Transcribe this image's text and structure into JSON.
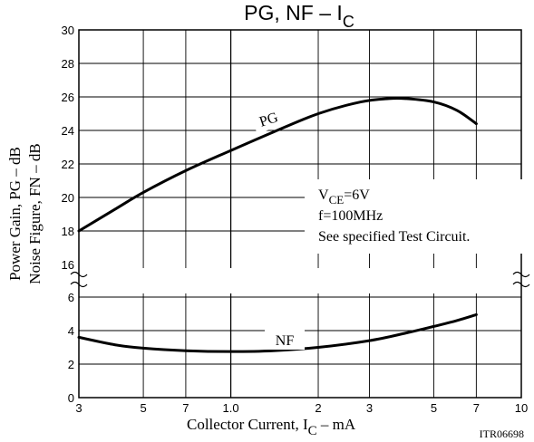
{
  "chart_data": {
    "type": "line",
    "title": {
      "main": "PG,  NF  –  I",
      "sub": "C"
    },
    "xlabel": {
      "main": "Collector Current, I",
      "sub": "C",
      "suffix": "  –  mA"
    },
    "ylabel": {
      "line1": "Power Gain, PG  –  dB",
      "line2": "Noise Figure, FN  –  dB"
    },
    "x_scale": "log",
    "xlim": [
      3,
      100
    ],
    "x_ticks": [
      {
        "value": 3,
        "label": "3"
      },
      {
        "value": 5,
        "label": "5"
      },
      {
        "value": 7,
        "label": "7"
      },
      {
        "value": 10,
        "label": "1.0"
      },
      {
        "value": 20,
        "label": "2"
      },
      {
        "value": 30,
        "label": "3"
      },
      {
        "value": 50,
        "label": "5"
      },
      {
        "value": 70,
        "label": "7"
      },
      {
        "value": 100,
        "label": "10"
      }
    ],
    "y_upper_ticks": [
      "16",
      "18",
      "20",
      "22",
      "24",
      "26",
      "28",
      "30"
    ],
    "y_lower_ticks": [
      "0",
      "2",
      "4",
      "6"
    ],
    "ylim_upper": [
      16,
      30
    ],
    "ylim_lower": [
      0,
      6
    ],
    "axis_break": "between 6 and 16",
    "grid": true,
    "series": [
      {
        "name": "PG",
        "x": [
          3,
          4,
          5,
          7,
          10,
          14,
          20,
          28,
          35,
          40,
          50,
          60,
          70
        ],
        "y": [
          18.0,
          19.3,
          20.3,
          21.6,
          22.8,
          23.9,
          25.0,
          25.7,
          25.9,
          25.9,
          25.7,
          25.2,
          24.4
        ]
      },
      {
        "name": "NF",
        "x": [
          3,
          4,
          5,
          7,
          10,
          14,
          20,
          30,
          40,
          50,
          60,
          70
        ],
        "y": [
          3.6,
          3.15,
          2.95,
          2.8,
          2.75,
          2.8,
          3.0,
          3.4,
          3.85,
          4.25,
          4.6,
          4.95
        ]
      }
    ],
    "annotation": {
      "line1_main": "V",
      "line1_sub": "CE",
      "line1_rest": "=6V",
      "line2": "f=100MHz",
      "line3": "See specified Test Circuit."
    },
    "reference_code": "ITR06698"
  }
}
